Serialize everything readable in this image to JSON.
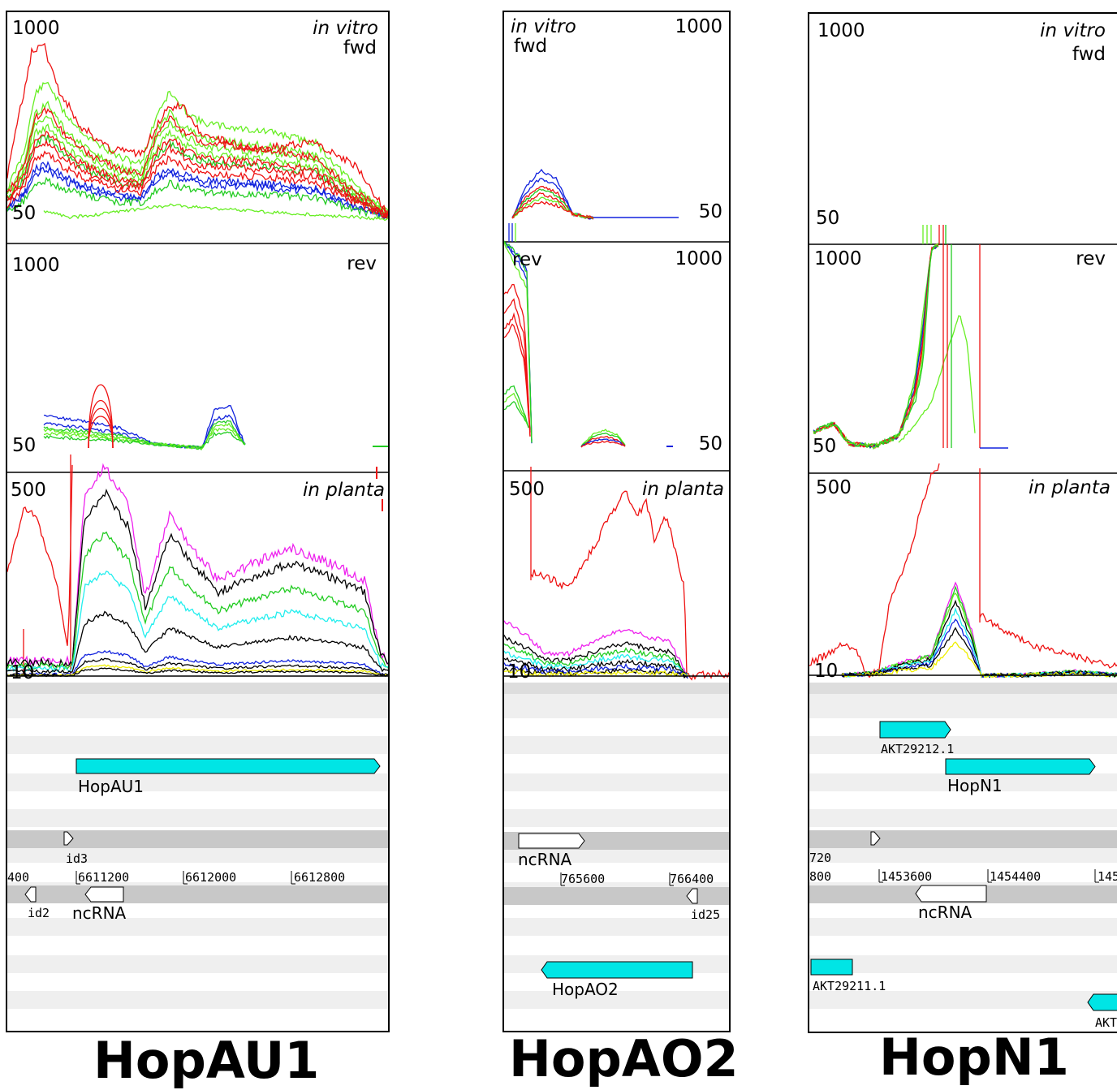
{
  "panels": [
    {
      "title": "HopAU1",
      "fwd": {
        "top_tick": "1000",
        "bottom_tick": "50",
        "condition": "in vitro",
        "strand": "fwd"
      },
      "rev": {
        "top_tick": "1000",
        "bottom_tick": "50",
        "strand": "rev"
      },
      "planta": {
        "top_tick": "500",
        "bottom_tick": "10",
        "condition": "in planta"
      },
      "genes": [
        {
          "label": "HopAU1",
          "kind": "cds",
          "strand": "+"
        },
        {
          "label": "id3",
          "kind": "small",
          "strand": "+"
        },
        {
          "label": "id2",
          "kind": "small",
          "strand": "-"
        },
        {
          "label": "ncRNA",
          "kind": "ncrna",
          "strand": "-"
        }
      ],
      "ruler": [
        "400",
        "6611200",
        "6612000",
        "6612800"
      ]
    },
    {
      "title": "HopAO2",
      "fwd": {
        "top_tick": "1000",
        "bottom_tick": "50",
        "condition": "in vitro",
        "strand": "fwd"
      },
      "rev": {
        "top_tick": "1000",
        "bottom_tick": "50",
        "strand": "rev"
      },
      "planta": {
        "top_tick": "500",
        "bottom_tick": "10",
        "condition": "in planta"
      },
      "genes": [
        {
          "label": "ncRNA",
          "kind": "ncrna",
          "strand": "+"
        },
        {
          "label": "id25",
          "kind": "small",
          "strand": "-"
        },
        {
          "label": "HopAO2",
          "kind": "cds",
          "strand": "-"
        }
      ],
      "ruler": [
        "765600",
        "766400"
      ]
    },
    {
      "title": "HopN1",
      "fwd": {
        "top_tick": "1000",
        "bottom_tick": "50",
        "condition": "in vitro",
        "strand": "fwd"
      },
      "rev": {
        "top_tick": "1000",
        "bottom_tick": "50",
        "strand": "rev"
      },
      "planta": {
        "top_tick": "500",
        "bottom_tick": "10",
        "condition": "in planta"
      },
      "genes": [
        {
          "label": "AKT29212.1",
          "kind": "cds",
          "strand": "+"
        },
        {
          "label": "HopN1",
          "kind": "cds",
          "strand": "+"
        },
        {
          "label": "720",
          "kind": "small",
          "strand": "+"
        },
        {
          "label": "ncRNA",
          "kind": "ncrna",
          "strand": "-"
        },
        {
          "label": "AKT29211.1",
          "kind": "cds",
          "strand": "+"
        },
        {
          "label": "AKT",
          "kind": "cds",
          "strand": "-"
        }
      ],
      "ruler": [
        "800",
        "1453600",
        "1454400",
        "145"
      ]
    }
  ],
  "colors": {
    "red": "#ee1111",
    "green": "#22cc22",
    "lime": "#66ee22",
    "blue": "#1122dd",
    "magenta": "#ee22ee",
    "black": "#000000",
    "cyan": "#22eeee",
    "yellow": "#eeee00",
    "gene_fill": "#00e5e5",
    "track_grey": "#c8c8c8",
    "track_light": "#efefef"
  }
}
